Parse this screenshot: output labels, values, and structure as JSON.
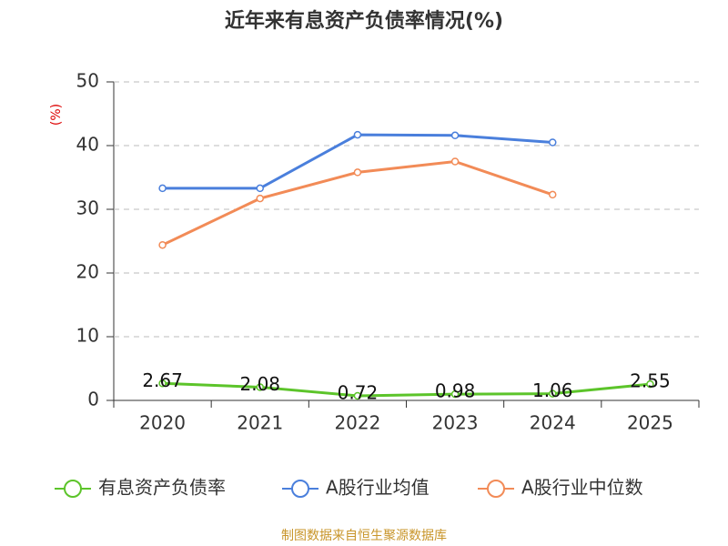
{
  "chart_data": {
    "type": "line",
    "title": "近年来有息资产负债率情况(%)",
    "y_label": "(%)",
    "categories": [
      "2020",
      "2021",
      "2022",
      "2023",
      "2024",
      "2025"
    ],
    "series": [
      {
        "name": "有息资产负债率",
        "color": "#5cc42a",
        "values": [
          2.67,
          2.08,
          0.72,
          0.98,
          1.06,
          2.55
        ],
        "show_labels": true
      },
      {
        "name": "A股行业均值",
        "color": "#4a7fdc",
        "values": [
          33.3,
          33.3,
          41.7,
          41.6,
          40.5,
          null
        ]
      },
      {
        "name": "A股行业中位数",
        "color": "#f28b57",
        "values": [
          24.4,
          31.7,
          35.8,
          37.5,
          32.3,
          null
        ]
      }
    ],
    "ylim": [
      0,
      50
    ],
    "yticks": [
      0,
      10,
      20,
      30,
      40,
      50
    ],
    "grid": true,
    "source": "制图数据来自恒生聚源数据库"
  }
}
